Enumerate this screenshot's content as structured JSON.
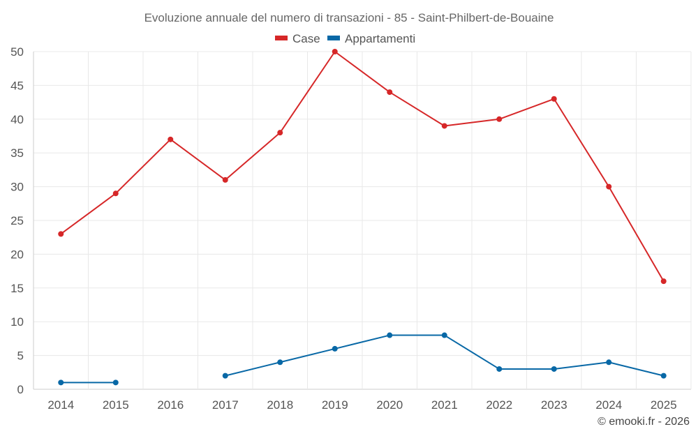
{
  "chart_data": {
    "type": "line",
    "title": "Evoluzione annuale del numero di transazioni - 85 - Saint-Philbert-de-Bouaine",
    "categories": [
      "2014",
      "2015",
      "2016",
      "2017",
      "2018",
      "2019",
      "2020",
      "2021",
      "2022",
      "2023",
      "2024",
      "2025"
    ],
    "ylim": [
      0,
      50
    ],
    "yticks": [
      "0",
      "5",
      "10",
      "15",
      "20",
      "25",
      "30",
      "35",
      "40",
      "45",
      "50"
    ],
    "grid": true,
    "legend_position": "top-center",
    "series": [
      {
        "name": "Case",
        "color": "#d62728",
        "values": [
          23,
          29,
          37,
          31,
          38,
          50,
          44,
          39,
          40,
          43,
          30,
          16
        ]
      },
      {
        "name": "Appartamenti",
        "color": "#0868a6",
        "values": [
          1,
          1,
          null,
          2,
          4,
          6,
          8,
          8,
          3,
          3,
          4,
          2
        ]
      }
    ]
  },
  "credit": "© emooki.fr - 2026"
}
